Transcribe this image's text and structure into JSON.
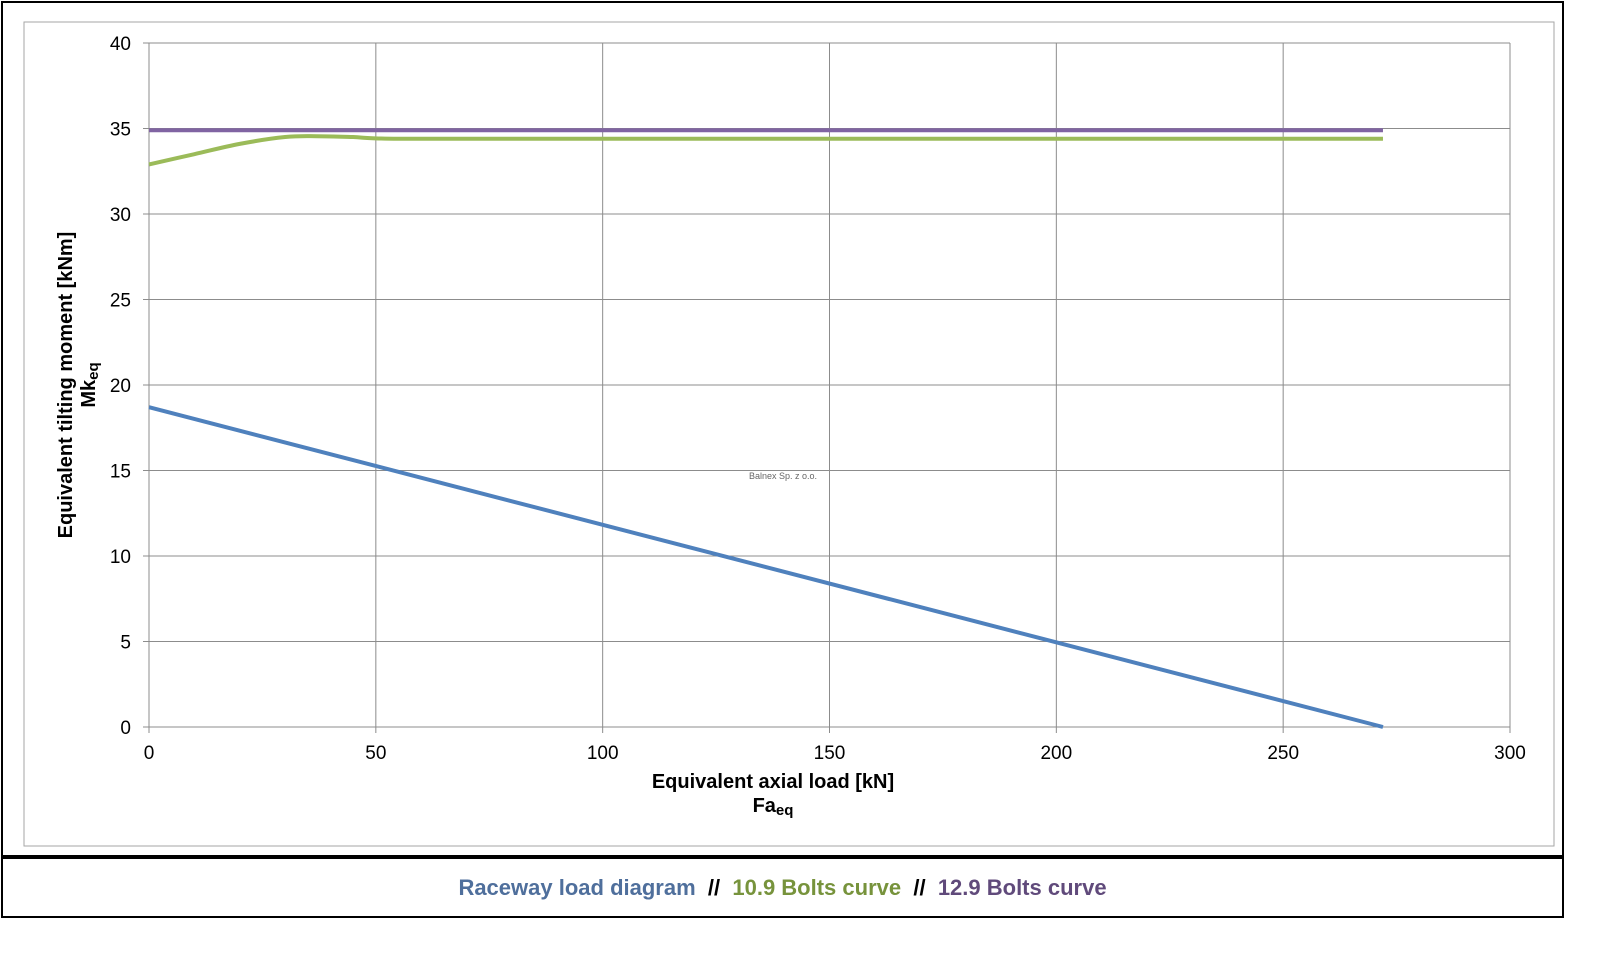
{
  "chart_data": {
    "type": "line",
    "xlabel": "Equivalent axial load [kN]",
    "xlabel_sub_main": "Fa",
    "xlabel_sub_index": "eq",
    "ylabel": "Equivalent tilting moment [kNm]",
    "ylabel_sub_main": "Mk",
    "ylabel_sub_index": "eq",
    "watermark": "Balnex Sp. z o.o.",
    "xlim": [
      0,
      300
    ],
    "ylim": [
      0,
      40
    ],
    "x_ticks": [
      "0",
      "50",
      "100",
      "150",
      "200",
      "250",
      "300"
    ],
    "y_ticks": [
      "0",
      "5",
      "10",
      "15",
      "20",
      "25",
      "30",
      "35",
      "40"
    ],
    "x_tick_values": [
      0,
      50,
      100,
      150,
      200,
      250,
      300
    ],
    "y_tick_values": [
      0,
      5,
      10,
      15,
      20,
      25,
      30,
      35,
      40
    ],
    "grid": true,
    "series": [
      {
        "name": "Raceway load diagram",
        "color": "#4f81bd",
        "x": [
          0,
          272
        ],
        "y": [
          18.7,
          0
        ]
      },
      {
        "name": "10.9 Bolts curve",
        "color": "#9bbb59",
        "x": [
          0,
          10,
          20,
          30,
          37,
          45,
          55,
          100,
          150,
          200,
          250,
          272
        ],
        "y": [
          32.9,
          33.5,
          34.1,
          34.5,
          34.55,
          34.5,
          34.4,
          34.4,
          34.4,
          34.4,
          34.4,
          34.4
        ]
      },
      {
        "name": "12.9 Bolts curve",
        "color": "#8064a2",
        "x": [
          0,
          272
        ],
        "y": [
          34.9,
          34.9
        ]
      }
    ]
  },
  "legend": {
    "items": [
      {
        "label": "Raceway load diagram",
        "color": "#4f81bd"
      },
      {
        "label": "10.9 Bolts curve",
        "color": "#77933c"
      },
      {
        "label": "12.9 Bolts curve",
        "color": "#604a7b"
      }
    ],
    "separator": "//"
  }
}
